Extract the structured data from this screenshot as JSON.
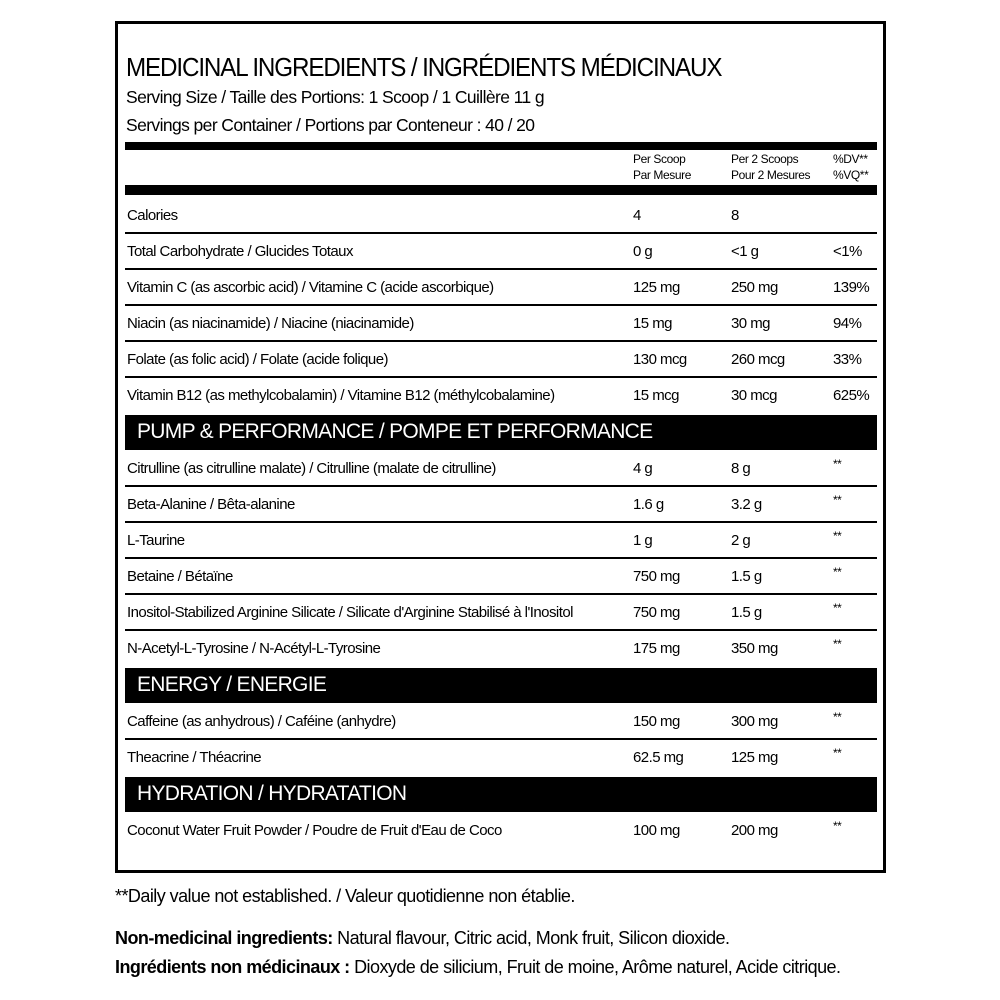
{
  "header": {
    "title": "MEDICINAL INGREDIENTS / INGRÉDIENTS MÉDICINAUX",
    "serving_size": "Serving Size / Taille des Portions: 1 Scoop / 1 Cuillère 11 g",
    "servings_per_container": "Servings per Container / Portions par Conteneur : 40 / 20"
  },
  "columns": {
    "per_scoop": [
      "Per Scoop",
      "Par Mesure"
    ],
    "per_2_scoops": [
      "Per 2 Scoops",
      "Pour 2 Mesures"
    ],
    "dv": [
      "%DV**",
      "%VQ**"
    ]
  },
  "sections": [
    {
      "title": "",
      "rows": [
        {
          "name": "Calories",
          "per_scoop": "4",
          "per_2": "8",
          "dv": ""
        },
        {
          "name": "Total Carbohydrate / Glucides Totaux",
          "per_scoop": "0 g",
          "per_2": "<1 g",
          "dv": "<1%"
        },
        {
          "name": "Vitamin C (as ascorbic acid) / Vitamine C (acide ascorbique)",
          "per_scoop": "125 mg",
          "per_2": "250 mg",
          "dv": "139%"
        },
        {
          "name": "Niacin (as niacinamide) / Niacine (niacinamide)",
          "per_scoop": "15 mg",
          "per_2": "30 mg",
          "dv": "94%"
        },
        {
          "name": "Folate (as folic acid) / Folate (acide folique)",
          "per_scoop": "130 mcg",
          "per_2": "260 mcg",
          "dv": "33%"
        },
        {
          "name": "Vitamin B12 (as methylcobalamin) / Vitamine B12 (méthylcobalamine)",
          "per_scoop": "15 mcg",
          "per_2": "30 mcg",
          "dv": "625%"
        }
      ]
    },
    {
      "title": "PUMP & PERFORMANCE / POMPE ET PERFORMANCE",
      "rows": [
        {
          "name": "Citrulline (as citrulline malate) / Citrulline (malate de citrulline)",
          "per_scoop": "4 g",
          "per_2": "8 g",
          "dv": "**"
        },
        {
          "name": "Beta-Alanine / Bêta-alanine",
          "per_scoop": "1.6 g",
          "per_2": "3.2 g",
          "dv": "**"
        },
        {
          "name": "L-Taurine",
          "per_scoop": "1 g",
          "per_2": "2 g",
          "dv": "**"
        },
        {
          "name": "Betaine / Bétaïne",
          "per_scoop": "750 mg",
          "per_2": "1.5 g",
          "dv": "**"
        },
        {
          "name": "Inositol-Stabilized Arginine Silicate / Silicate d'Arginine Stabilisé à l'Inositol",
          "per_scoop": "750 mg",
          "per_2": "1.5 g",
          "dv": "**"
        },
        {
          "name": "N-Acetyl-L-Tyrosine / N-Acétyl-L-Tyrosine",
          "per_scoop": "175 mg",
          "per_2": "350 mg",
          "dv": "**"
        }
      ]
    },
    {
      "title": "ENERGY / ENERGIE",
      "rows": [
        {
          "name": "Caffeine (as anhydrous) / Caféine (anhydre)",
          "per_scoop": "150 mg",
          "per_2": "300 mg",
          "dv": "**"
        },
        {
          "name": "Theacrine / Théacrine",
          "per_scoop": "62.5 mg",
          "per_2": "125 mg",
          "dv": "**"
        }
      ]
    },
    {
      "title": "HYDRATION / HYDRATATION",
      "rows": [
        {
          "name": "Coconut Water Fruit Powder / Poudre de Fruit d'Eau de Coco",
          "per_scoop": "100 mg",
          "per_2": "200 mg",
          "dv": "**"
        }
      ]
    }
  ],
  "footer": {
    "dv_note": "**Daily value not established. / Valeur quotidienne non établie.",
    "non_medicinal_label": "Non-medicinal ingredients:",
    "non_medicinal": " Natural flavour, Citric acid, Monk fruit, Silicon dioxide.",
    "non_medicinal_fr_label": "Ingrédients non médicinaux :",
    "non_medicinal_fr": " Dioxyde de silicium, Fruit de moine, Arôme naturel, Acide citrique."
  }
}
